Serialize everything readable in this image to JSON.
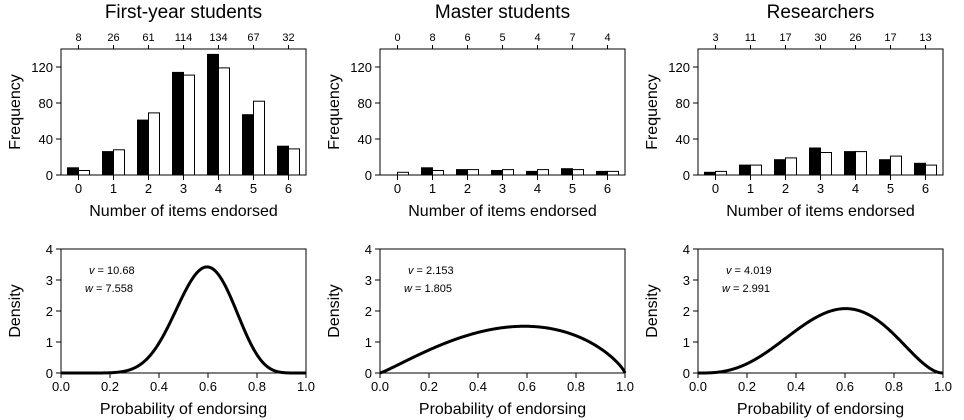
{
  "chart_data": [
    {
      "type": "bar",
      "title": "First-year students",
      "xlabel": "Number of items endorsed",
      "ylabel": "Frequency",
      "categories": [
        "0",
        "1",
        "2",
        "3",
        "4",
        "5",
        "6"
      ],
      "top_labels": [
        "8",
        "26",
        "61",
        "114",
        "134",
        "67",
        "32"
      ],
      "series": [
        {
          "values": [
            8,
            26,
            61,
            114,
            134,
            67,
            32
          ],
          "color": "#000000"
        },
        {
          "values": [
            5,
            28,
            69,
            111,
            119,
            82,
            29
          ],
          "color": "#ffffff"
        }
      ],
      "ylim": [
        0,
        140
      ],
      "yticks": [
        "0",
        "40",
        "80",
        "120"
      ]
    },
    {
      "type": "bar",
      "title": "Master students",
      "xlabel": "Number of items endorsed",
      "ylabel": "Frequency",
      "categories": [
        "0",
        "1",
        "2",
        "3",
        "4",
        "5",
        "6"
      ],
      "top_labels": [
        "0",
        "8",
        "6",
        "5",
        "4",
        "7",
        "4"
      ],
      "series": [
        {
          "values": [
            0,
            8,
            6,
            5,
            4,
            7,
            4
          ],
          "color": "#000000"
        },
        {
          "values": [
            3,
            5,
            6,
            6,
            6,
            6,
            4
          ],
          "color": "#ffffff"
        }
      ],
      "ylim": [
        0,
        140
      ],
      "yticks": [
        "0",
        "40",
        "80",
        "120"
      ]
    },
    {
      "type": "bar",
      "title": "Researchers",
      "xlabel": "Number of items endorsed",
      "ylabel": "Frequency",
      "categories": [
        "0",
        "1",
        "2",
        "3",
        "4",
        "5",
        "6"
      ],
      "top_labels": [
        "3",
        "11",
        "17",
        "30",
        "26",
        "17",
        "13"
      ],
      "series": [
        {
          "values": [
            3,
            11,
            17,
            30,
            26,
            17,
            13
          ],
          "color": "#000000"
        },
        {
          "values": [
            4,
            11,
            19,
            25,
            26,
            21,
            11
          ],
          "color": "#ffffff"
        }
      ],
      "ylim": [
        0,
        140
      ],
      "yticks": [
        "0",
        "40",
        "80",
        "120"
      ]
    },
    {
      "type": "line",
      "xlabel": "Probability of endorsing",
      "ylabel": "Density",
      "params": {
        "v_label": "v",
        "v": "10.68",
        "w_label": "w",
        "w": "7.558"
      },
      "beta": {
        "a": 10.68,
        "b": 7.558
      },
      "xlim": [
        0,
        1
      ],
      "ylim": [
        0,
        4
      ],
      "xticks": [
        "0.0",
        "0.2",
        "0.4",
        "0.6",
        "0.8",
        "1.0"
      ],
      "yticks": [
        "0",
        "1",
        "2",
        "3",
        "4"
      ]
    },
    {
      "type": "line",
      "xlabel": "Probability of endorsing",
      "ylabel": "Density",
      "params": {
        "v_label": "v",
        "v": "2.153",
        "w_label": "w",
        "w": "1.805"
      },
      "beta": {
        "a": 2.153,
        "b": 1.805
      },
      "xlim": [
        0,
        1
      ],
      "ylim": [
        0,
        4
      ],
      "xticks": [
        "0.0",
        "0.2",
        "0.4",
        "0.6",
        "0.8",
        "1.0"
      ],
      "yticks": [
        "0",
        "1",
        "2",
        "3",
        "4"
      ]
    },
    {
      "type": "line",
      "xlabel": "Probability of endorsing",
      "ylabel": "Density",
      "params": {
        "v_label": "v",
        "v": "4.019",
        "w_label": "w",
        "w": "2.991"
      },
      "beta": {
        "a": 4.019,
        "b": 2.991
      },
      "xlim": [
        0,
        1
      ],
      "ylim": [
        0,
        4
      ],
      "xticks": [
        "0.0",
        "0.2",
        "0.4",
        "0.6",
        "0.8",
        "1.0"
      ],
      "yticks": [
        "0",
        "1",
        "2",
        "3",
        "4"
      ]
    }
  ]
}
